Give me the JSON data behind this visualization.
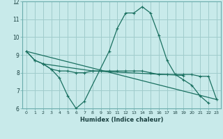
{
  "title": "",
  "xlabel": "Humidex (Indice chaleur)",
  "background_color": "#c8eaea",
  "grid_color": "#a0cccc",
  "line_color": "#1a7060",
  "x_values": [
    0,
    1,
    2,
    3,
    4,
    5,
    6,
    7,
    8,
    9,
    10,
    11,
    12,
    13,
    14,
    15,
    16,
    17,
    18,
    19,
    20,
    21,
    22,
    23
  ],
  "series1_x": [
    0,
    1,
    2,
    3,
    4,
    5,
    6,
    7,
    10,
    11,
    12,
    13,
    14,
    15,
    16,
    17,
    18,
    19,
    20,
    21,
    22
  ],
  "series1_y": [
    9.2,
    8.7,
    8.5,
    8.2,
    7.7,
    6.7,
    6.0,
    6.4,
    9.2,
    10.5,
    11.35,
    11.35,
    11.7,
    11.35,
    10.1,
    8.7,
    7.9,
    7.6,
    7.3,
    6.7,
    6.3
  ],
  "series2_x": [
    0,
    1,
    2,
    3,
    4,
    5,
    6,
    7,
    8,
    9,
    10,
    11,
    12,
    13,
    14,
    15,
    16,
    17,
    18,
    19,
    20,
    21,
    22,
    23
  ],
  "series2_y": [
    9.2,
    8.7,
    8.5,
    8.2,
    8.1,
    8.1,
    8.0,
    8.0,
    8.1,
    8.1,
    8.1,
    8.1,
    8.1,
    8.1,
    8.1,
    8.0,
    7.9,
    7.9,
    7.9,
    7.9,
    7.9,
    7.8,
    7.8,
    6.5
  ],
  "series3_x": [
    0,
    23
  ],
  "series3_y": [
    9.2,
    6.5
  ],
  "series4_x": [
    2,
    8,
    19
  ],
  "series4_y": [
    8.5,
    8.1,
    7.85
  ],
  "ylim": [
    6,
    12
  ],
  "xlim": [
    -0.5,
    23.5
  ],
  "yticks": [
    6,
    7,
    8,
    9,
    10,
    11,
    12
  ],
  "xticks": [
    0,
    1,
    2,
    3,
    4,
    5,
    6,
    7,
    8,
    9,
    10,
    11,
    12,
    13,
    14,
    15,
    16,
    17,
    18,
    19,
    20,
    21,
    22,
    23
  ]
}
